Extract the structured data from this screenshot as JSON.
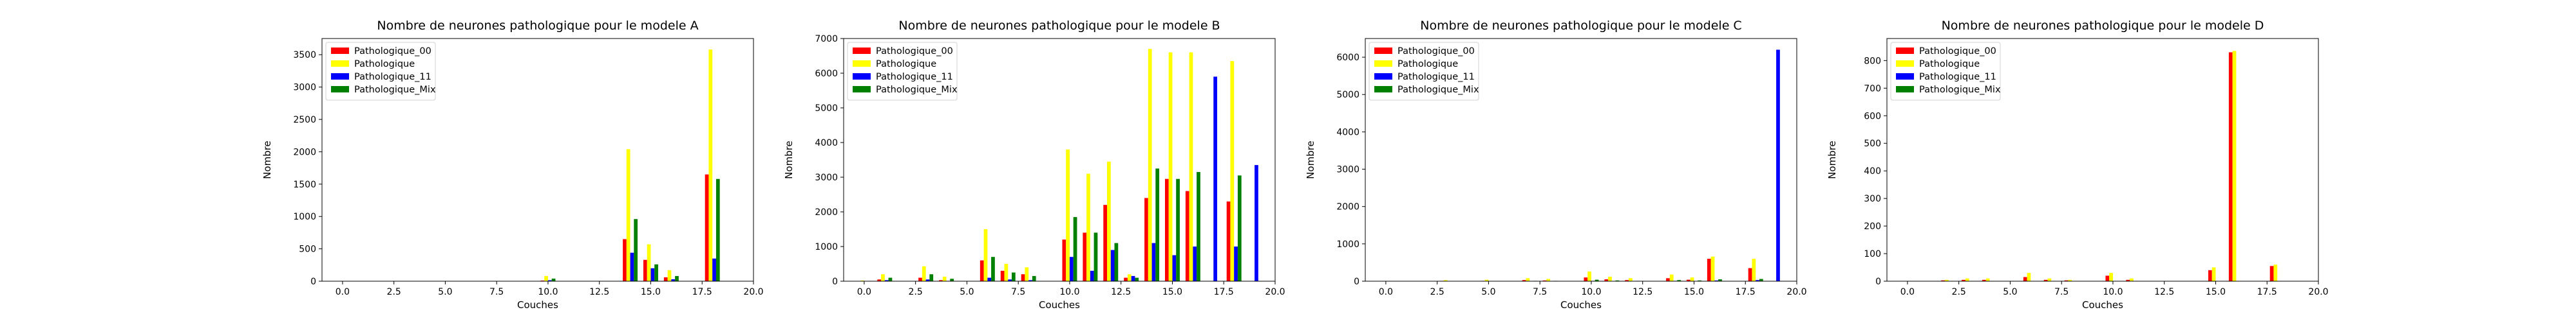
{
  "colors": {
    "Pathologique_00": "#ff0000",
    "Pathologique": "#ffff00",
    "Pathologique_11": "#0000ff",
    "Pathologique_Mix": "#008000"
  },
  "chart_data": [
    {
      "type": "bar",
      "title": "Nombre de neurones pathologique pour le modele A",
      "xlabel": "Couches",
      "ylabel": "Nombre",
      "xlim": [
        -1,
        20
      ],
      "ylim": [
        0,
        3750
      ],
      "xticks": [
        "0.0",
        "2.5",
        "5.0",
        "7.5",
        "10.0",
        "12.5",
        "15.0",
        "17.5",
        "20.0"
      ],
      "yticks": [
        0,
        500,
        1000,
        1500,
        2000,
        2500,
        3000,
        3500
      ],
      "legend": "top-left",
      "categories": [
        10,
        14,
        15,
        16,
        18
      ],
      "series": [
        {
          "name": "Pathologique_00",
          "values": [
            10,
            650,
            330,
            60,
            1650
          ]
        },
        {
          "name": "Pathologique",
          "values": [
            80,
            2040,
            570,
            170,
            3580
          ]
        },
        {
          "name": "Pathologique_11",
          "values": [
            15,
            440,
            200,
            30,
            350
          ]
        },
        {
          "name": "Pathologique_Mix",
          "values": [
            40,
            960,
            260,
            80,
            1580
          ]
        }
      ]
    },
    {
      "type": "bar",
      "title": "Nombre de neurones pathologique pour le modele B",
      "xlabel": "Couches",
      "ylabel": "Nombre",
      "xlim": [
        -1,
        20
      ],
      "ylim": [
        0,
        7000
      ],
      "xticks": [
        "0.0",
        "2.5",
        "5.0",
        "7.5",
        "10.0",
        "12.5",
        "15.0",
        "17.5",
        "20.0"
      ],
      "yticks": [
        0,
        1000,
        2000,
        3000,
        4000,
        5000,
        6000,
        7000
      ],
      "legend": "top-left",
      "categories": [
        0,
        1,
        3,
        4,
        6,
        7,
        8,
        10,
        11,
        12,
        13,
        14,
        15,
        16,
        17,
        18,
        19
      ],
      "series": [
        {
          "name": "Pathologique_00",
          "values": [
            0,
            50,
            100,
            30,
            600,
            300,
            200,
            1200,
            1400,
            2200,
            100,
            2400,
            2950,
            2600,
            0,
            2300,
            0
          ]
        },
        {
          "name": "Pathologique",
          "values": [
            20,
            200,
            430,
            130,
            1500,
            500,
            400,
            3800,
            3100,
            3450,
            200,
            6700,
            6600,
            6600,
            0,
            6350,
            0
          ]
        },
        {
          "name": "Pathologique_11",
          "values": [
            0,
            30,
            50,
            10,
            100,
            50,
            30,
            700,
            300,
            900,
            150,
            1100,
            750,
            1000,
            5900,
            1000,
            3350
          ]
        },
        {
          "name": "Pathologique_Mix",
          "values": [
            10,
            100,
            200,
            70,
            700,
            250,
            150,
            1850,
            1400,
            1100,
            100,
            3250,
            2950,
            3150,
            0,
            3050,
            0
          ]
        }
      ]
    },
    {
      "type": "bar",
      "title": "Nombre de neurones pathologique pour le modele C",
      "xlabel": "Couches",
      "ylabel": "Nombre",
      "xlim": [
        -1,
        20
      ],
      "ylim": [
        0,
        6500
      ],
      "xticks": [
        "0.0",
        "2.5",
        "5.0",
        "7.5",
        "10.0",
        "12.5",
        "15.0",
        "17.5",
        "20.0"
      ],
      "yticks": [
        0,
        1000,
        2000,
        3000,
        4000,
        5000,
        6000
      ],
      "legend": "top-left",
      "categories": [
        3,
        5,
        7,
        8,
        10,
        11,
        12,
        14,
        15,
        16,
        18,
        19
      ],
      "series": [
        {
          "name": "Pathologique_00",
          "values": [
            10,
            10,
            30,
            20,
            100,
            50,
            30,
            80,
            40,
            600,
            350,
            0
          ]
        },
        {
          "name": "Pathologique",
          "values": [
            30,
            40,
            80,
            60,
            260,
            120,
            80,
            180,
            100,
            660,
            600,
            0
          ]
        },
        {
          "name": "Pathologique_11",
          "values": [
            0,
            0,
            0,
            0,
            10,
            0,
            0,
            10,
            0,
            20,
            30,
            6200
          ]
        },
        {
          "name": "Pathologique_Mix",
          "values": [
            5,
            5,
            10,
            10,
            40,
            20,
            10,
            30,
            20,
            50,
            60,
            0
          ]
        }
      ]
    },
    {
      "type": "bar",
      "title": "Nombre de neurones pathologique pour le modele D",
      "xlabel": "Couches",
      "ylabel": "Nombre",
      "xlim": [
        -1,
        20
      ],
      "ylim": [
        0,
        880
      ],
      "xticks": [
        "0.0",
        "2.5",
        "5.0",
        "7.5",
        "10.0",
        "12.5",
        "15.0",
        "17.5",
        "20.0"
      ],
      "yticks": [
        0,
        100,
        200,
        300,
        400,
        500,
        600,
        700,
        800
      ],
      "legend": "top-left",
      "categories": [
        2,
        3,
        4,
        6,
        7,
        8,
        10,
        11,
        15,
        16,
        18
      ],
      "series": [
        {
          "name": "Pathologique_00",
          "values": [
            3,
            5,
            5,
            15,
            5,
            3,
            20,
            5,
            40,
            830,
            55
          ]
        },
        {
          "name": "Pathologique",
          "values": [
            5,
            10,
            10,
            30,
            10,
            5,
            30,
            10,
            50,
            835,
            60
          ]
        },
        {
          "name": "Pathologique_11",
          "values": [
            0,
            0,
            0,
            0,
            0,
            0,
            0,
            0,
            0,
            0,
            0
          ]
        },
        {
          "name": "Pathologique_Mix",
          "values": [
            0,
            0,
            0,
            0,
            0,
            0,
            0,
            0,
            0,
            0,
            0
          ]
        }
      ]
    }
  ]
}
